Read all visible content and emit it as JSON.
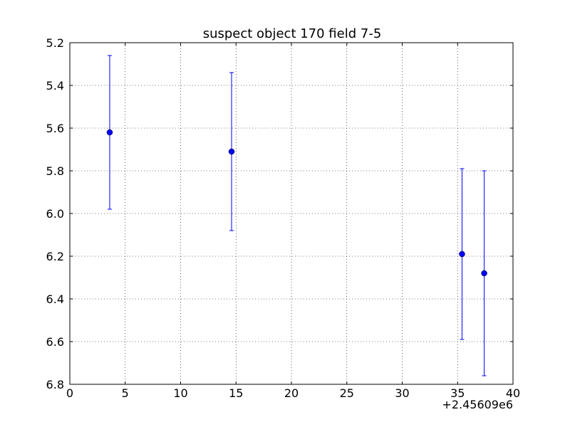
{
  "chart_data": {
    "type": "errorbar",
    "title": "suspect object 170 field 7-5",
    "x_offset_label": "+2.45609e6",
    "series": [
      {
        "color": "#0000ff",
        "x": [
          3.6,
          14.6,
          35.4,
          37.4
        ],
        "values": [
          5.62,
          5.71,
          6.19,
          6.28
        ],
        "errors": [
          0.36,
          0.37,
          0.4,
          0.48
        ]
      }
    ],
    "xlim": [
      0,
      40
    ],
    "xticks": [
      0,
      5,
      10,
      15,
      20,
      25,
      30,
      35,
      40
    ],
    "ylim": [
      6.8,
      5.2
    ],
    "yticks": [
      5.2,
      5.4,
      5.6,
      5.8,
      {
        "value": 6,
        "label": "6.0"
      },
      6.2,
      6.4,
      6.6,
      6.8
    ],
    "grid": true
  }
}
